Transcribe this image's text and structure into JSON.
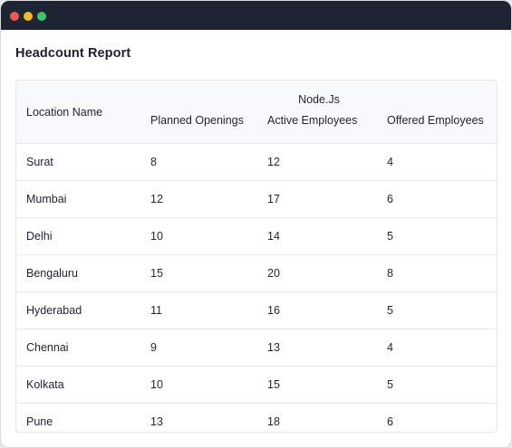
{
  "report": {
    "title": "Headcount Report"
  },
  "table": {
    "location_header": "Location Name",
    "group_header": "Node.Js",
    "sub_headers": [
      "Planned Openings",
      "Active Employees",
      "Offered Employees"
    ],
    "rows": [
      {
        "location": "Surat",
        "planned": "8",
        "active": "12",
        "offered": "4"
      },
      {
        "location": "Mumbai",
        "planned": "12",
        "active": "17",
        "offered": "6"
      },
      {
        "location": "Delhi",
        "planned": "10",
        "active": "14",
        "offered": "5"
      },
      {
        "location": "Bengaluru",
        "planned": "15",
        "active": "20",
        "offered": "8"
      },
      {
        "location": "Hyderabad",
        "planned": "11",
        "active": "16",
        "offered": "5"
      },
      {
        "location": "Chennai",
        "planned": "9",
        "active": "13",
        "offered": "4"
      },
      {
        "location": "Kolkata",
        "planned": "10",
        "active": "15",
        "offered": "5"
      },
      {
        "location": "Pune",
        "planned": "13",
        "active": "18",
        "offered": "6"
      }
    ]
  },
  "window": {
    "controls": [
      "close-dot",
      "minimize-dot",
      "maximize-dot"
    ],
    "colors": {
      "close": "#f2555a",
      "minimize": "#f4b82c",
      "maximize": "#3ec46b",
      "titlebar": "#1f2434"
    }
  }
}
